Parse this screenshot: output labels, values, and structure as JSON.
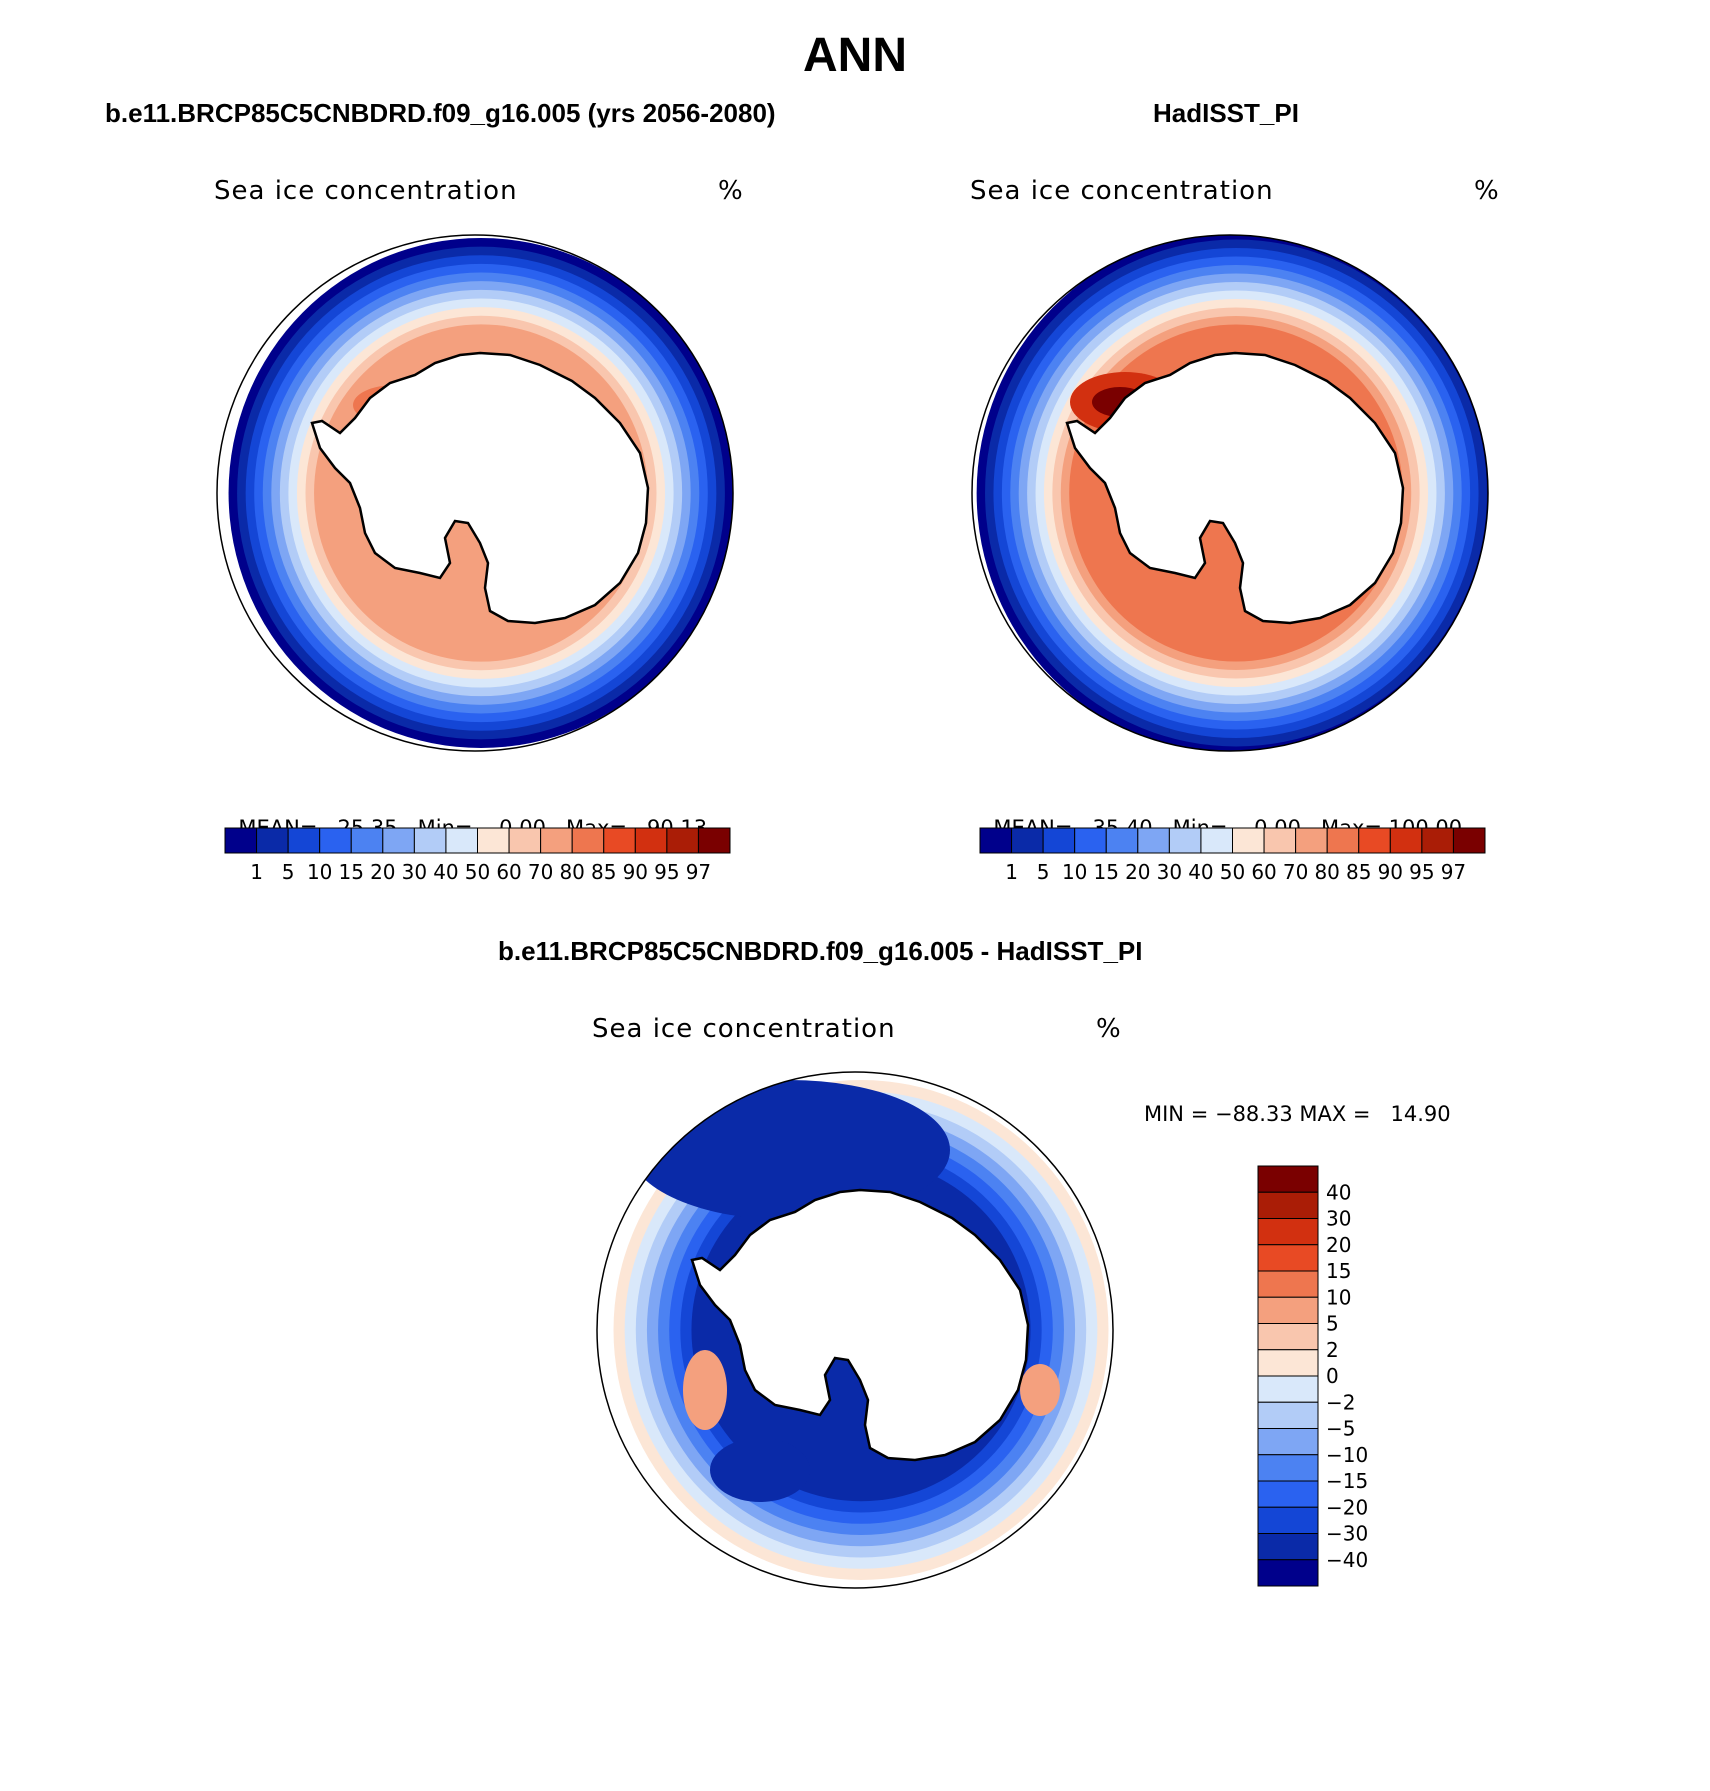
{
  "header": {
    "season": "ANN"
  },
  "panels": {
    "model": {
      "title": "b.e11.BRCP85C5CNBDRD.f09_g16.005 (yrs 2056-2080)",
      "label": "Sea ice concentration",
      "units": "%",
      "stats": {
        "mean_label": "MEAN=",
        "mean": "25.35",
        "min_label": "Min=",
        "min": "0.00",
        "max_label": "Max=",
        "max": "90.13"
      }
    },
    "obs": {
      "title": "HadISST_PI",
      "label": "Sea ice concentration",
      "units": "%",
      "stats": {
        "mean_label": "MEAN=",
        "mean": "35.40",
        "min_label": "Min=",
        "min": "0.00",
        "max_label": "Max=",
        "max": "100.00"
      }
    },
    "diff": {
      "title": "b.e11.BRCP85C5CNBDRD.f09_g16.005 - HadISST_PI",
      "label": "Sea ice concentration",
      "units": "%",
      "minmax": "MIN = −88.33 MAX =   14.90"
    }
  },
  "colorbars": {
    "abs": {
      "colors": [
        "#00008b",
        "#0a2aa8",
        "#1446d6",
        "#2a62f0",
        "#4c82f2",
        "#7ea6f4",
        "#b2ccf7",
        "#d9e8fa",
        "#fce6d6",
        "#f9c6ae",
        "#f4a07e",
        "#ee764f",
        "#e84a24",
        "#d23010",
        "#aa1d06",
        "#7a0000"
      ],
      "ticks": [
        "1",
        "5",
        "10",
        "15",
        "20",
        "30",
        "40",
        "50",
        "60",
        "70",
        "80",
        "85",
        "90",
        "95",
        "97"
      ]
    },
    "diff": {
      "colors": [
        "#7a0000",
        "#aa1d06",
        "#d23010",
        "#e84a24",
        "#ee764f",
        "#f4a07e",
        "#f9c6ae",
        "#fce6d6",
        "#d9e8fa",
        "#b2ccf7",
        "#7ea6f4",
        "#4c82f2",
        "#2a62f0",
        "#1446d6",
        "#0a2aa8",
        "#00008b"
      ],
      "ticks": [
        "40",
        "30",
        "20",
        "15",
        "10",
        "5",
        "2",
        "0",
        "−2",
        "−5",
        "−10",
        "−15",
        "−20",
        "−30",
        "−40"
      ]
    }
  },
  "map_fields": {
    "model": {
      "ring_colors": [
        "#00008b",
        "#0a2aa8",
        "#1446d6",
        "#2a62f0",
        "#4c82f2",
        "#7ea6f4",
        "#b2ccf7",
        "#d9e8fa",
        "#fce6d6",
        "#f9c6ae",
        "#f4a07e"
      ]
    },
    "obs": {
      "ring_colors": [
        "#00008b",
        "#0a2aa8",
        "#1446d6",
        "#2a62f0",
        "#4c82f2",
        "#7ea6f4",
        "#b2ccf7",
        "#d9e8fa",
        "#fce6d6",
        "#f9c6ae",
        "#f4a07e",
        "#ee764f"
      ]
    },
    "diff": {
      "ring_colors": [
        "#fce6d6",
        "#d9e8fa",
        "#b2ccf7",
        "#7ea6f4",
        "#4c82f2",
        "#2a62f0",
        "#1446d6",
        "#0a2aa8"
      ]
    }
  }
}
